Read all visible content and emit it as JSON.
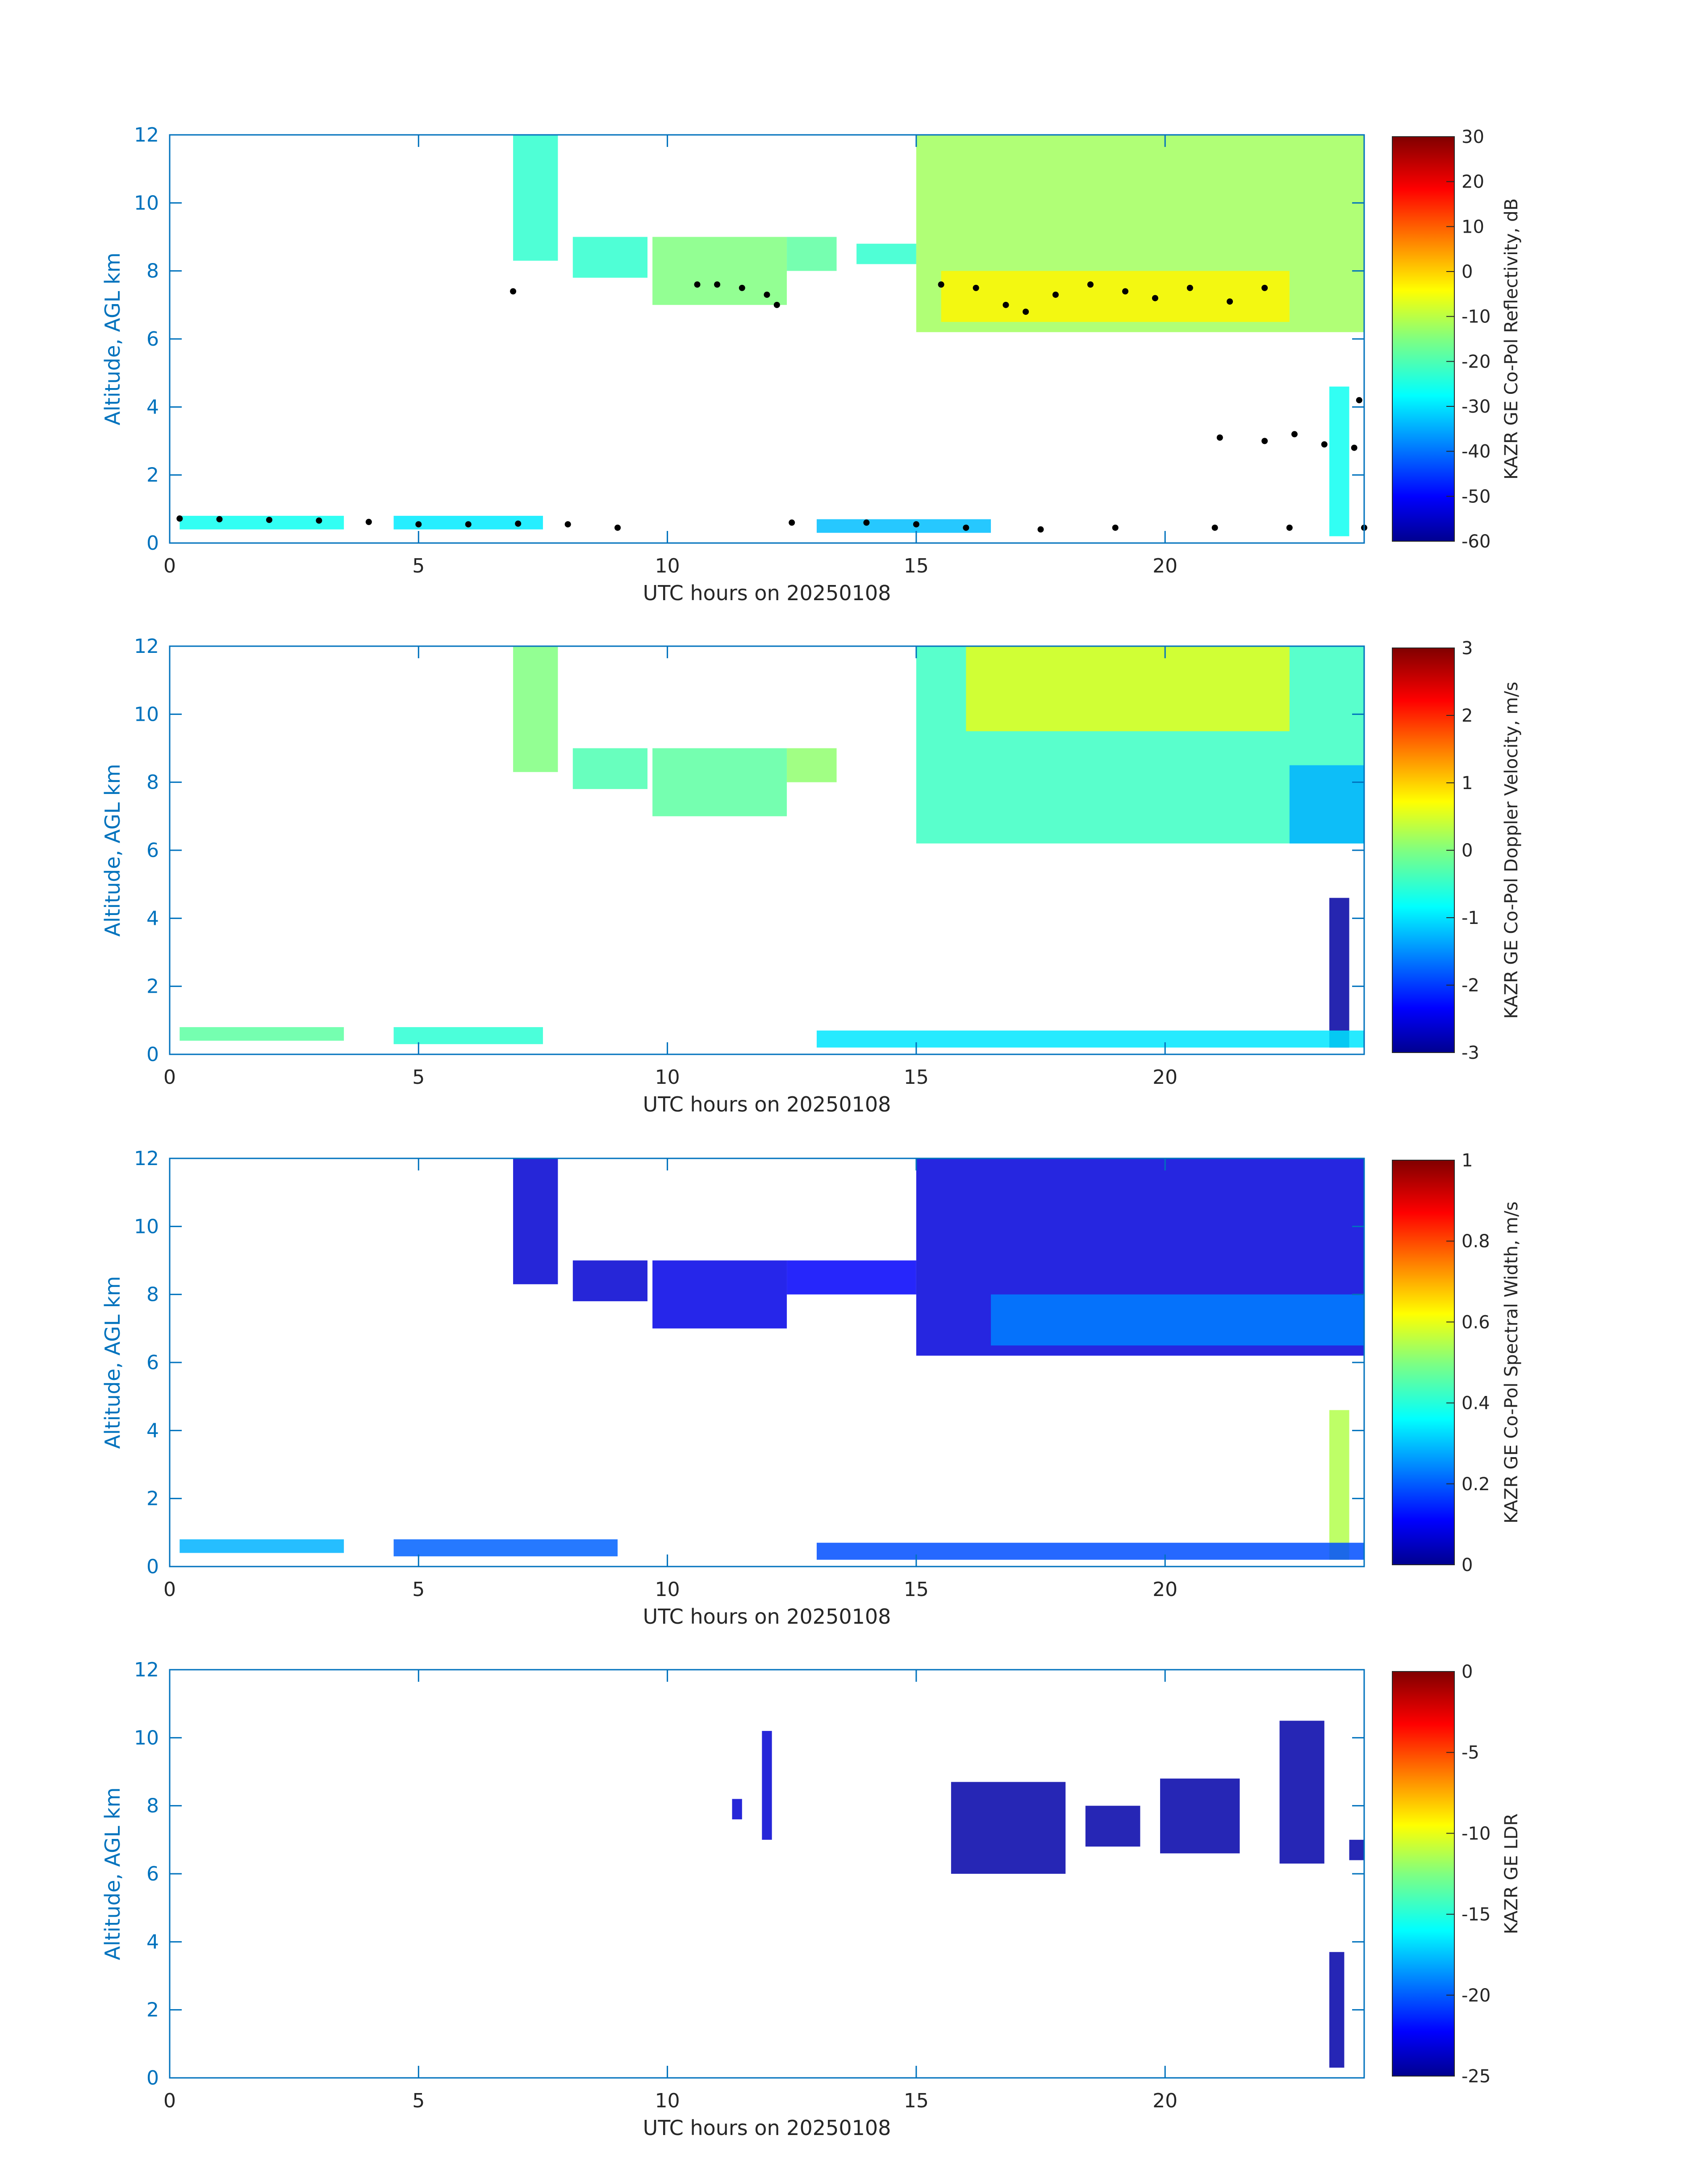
{
  "figure": {
    "xlabel": "UTC hours on 20250108",
    "ylabel": "Altitude, AGL km",
    "axis_color": "#0072bd",
    "text_color": "#262626"
  },
  "chart_data": [
    {
      "type": "heatmap",
      "colorbar_label": "KAZR GE Co-Pol Reflectivity, dB",
      "xlabel": "UTC hours on 20250108",
      "ylabel": "Altitude, AGL km",
      "xlim": [
        0,
        24
      ],
      "ylim": [
        0,
        12
      ],
      "xticks": [
        0,
        5,
        10,
        15,
        20
      ],
      "yticks": [
        0,
        2,
        4,
        6,
        8,
        10,
        12
      ],
      "clim": [
        -60,
        30
      ],
      "cticks": [
        -60,
        -50,
        -40,
        -30,
        -20,
        -10,
        0,
        10,
        20,
        30
      ],
      "colormap": "jet",
      "overlay_markers": "black dots (cloud base / top points)",
      "features": [
        {
          "x0": 6.9,
          "x1": 7.8,
          "y0": 8.3,
          "y1": 12.0,
          "value": -22
        },
        {
          "x0": 8.1,
          "x1": 9.6,
          "y0": 7.8,
          "y1": 9.0,
          "value": -22
        },
        {
          "x0": 9.7,
          "x1": 12.4,
          "y0": 7.0,
          "y1": 9.0,
          "value": -15
        },
        {
          "x0": 12.4,
          "x1": 13.4,
          "y0": 8.0,
          "y1": 9.0,
          "value": -18
        },
        {
          "x0": 13.8,
          "x1": 15.0,
          "y0": 8.2,
          "y1": 8.8,
          "value": -22
        },
        {
          "x0": 15.0,
          "x1": 24.0,
          "y0": 6.2,
          "y1": 12.0,
          "value": -12
        },
        {
          "x0": 15.5,
          "x1": 22.5,
          "y0": 6.5,
          "y1": 8.0,
          "value": -3
        },
        {
          "x0": 23.3,
          "x1": 23.7,
          "y0": 0.2,
          "y1": 4.6,
          "value": -25
        },
        {
          "x0": 0.2,
          "x1": 3.5,
          "y0": 0.4,
          "y1": 0.8,
          "value": -25
        },
        {
          "x0": 4.5,
          "x1": 7.5,
          "y0": 0.4,
          "y1": 0.8,
          "value": -28
        },
        {
          "x0": 13.0,
          "x1": 16.5,
          "y0": 0.3,
          "y1": 0.7,
          "value": -32
        }
      ],
      "markers": [
        {
          "x": 0.2,
          "y": 0.72
        },
        {
          "x": 1.0,
          "y": 0.7
        },
        {
          "x": 2.0,
          "y": 0.68
        },
        {
          "x": 3.0,
          "y": 0.66
        },
        {
          "x": 4.0,
          "y": 0.62
        },
        {
          "x": 5.0,
          "y": 0.55
        },
        {
          "x": 6.0,
          "y": 0.55
        },
        {
          "x": 7.0,
          "y": 0.57
        },
        {
          "x": 8.0,
          "y": 0.55
        },
        {
          "x": 9.0,
          "y": 0.45
        },
        {
          "x": 12.5,
          "y": 0.6
        },
        {
          "x": 14.0,
          "y": 0.6
        },
        {
          "x": 15.0,
          "y": 0.55
        },
        {
          "x": 16.0,
          "y": 0.45
        },
        {
          "x": 17.5,
          "y": 0.4
        },
        {
          "x": 19.0,
          "y": 0.45
        },
        {
          "x": 21.0,
          "y": 0.45
        },
        {
          "x": 22.5,
          "y": 0.45
        },
        {
          "x": 24.0,
          "y": 0.45
        },
        {
          "x": 6.9,
          "y": 7.4
        },
        {
          "x": 10.6,
          "y": 7.6
        },
        {
          "x": 11.0,
          "y": 7.6
        },
        {
          "x": 11.5,
          "y": 7.5
        },
        {
          "x": 12.0,
          "y": 7.3
        },
        {
          "x": 12.2,
          "y": 7.0
        },
        {
          "x": 15.5,
          "y": 7.6
        },
        {
          "x": 16.2,
          "y": 7.5
        },
        {
          "x": 16.8,
          "y": 7.0
        },
        {
          "x": 17.2,
          "y": 6.8
        },
        {
          "x": 17.8,
          "y": 7.3
        },
        {
          "x": 18.5,
          "y": 7.6
        },
        {
          "x": 19.2,
          "y": 7.4
        },
        {
          "x": 19.8,
          "y": 7.2
        },
        {
          "x": 20.5,
          "y": 7.5
        },
        {
          "x": 21.3,
          "y": 7.1
        },
        {
          "x": 22.0,
          "y": 7.5
        },
        {
          "x": 21.1,
          "y": 3.1
        },
        {
          "x": 22.0,
          "y": 3.0
        },
        {
          "x": 22.6,
          "y": 3.2
        },
        {
          "x": 23.2,
          "y": 2.9
        },
        {
          "x": 23.8,
          "y": 2.8
        },
        {
          "x": 23.9,
          "y": 4.2
        }
      ]
    },
    {
      "type": "heatmap",
      "colorbar_label": "KAZR GE Co-Pol Doppler Velocity, m/s",
      "xlabel": "UTC hours on 20250108",
      "ylabel": "Altitude, AGL km",
      "xlim": [
        0,
        24
      ],
      "ylim": [
        0,
        12
      ],
      "xticks": [
        0,
        5,
        10,
        15,
        20
      ],
      "yticks": [
        0,
        2,
        4,
        6,
        8,
        10,
        12
      ],
      "clim": [
        -3,
        3
      ],
      "cticks": [
        -3,
        -2,
        -1,
        0,
        1,
        2,
        3
      ],
      "colormap": "jet",
      "features": [
        {
          "x0": 6.9,
          "x1": 7.8,
          "y0": 8.3,
          "y1": 12.0,
          "value": 0.0
        },
        {
          "x0": 8.1,
          "x1": 9.6,
          "y0": 7.8,
          "y1": 9.0,
          "value": -0.3
        },
        {
          "x0": 9.7,
          "x1": 12.4,
          "y0": 7.0,
          "y1": 9.0,
          "value": -0.2
        },
        {
          "x0": 12.4,
          "x1": 13.4,
          "y0": 8.0,
          "y1": 9.0,
          "value": 0.1
        },
        {
          "x0": 15.0,
          "x1": 24.0,
          "y0": 6.2,
          "y1": 12.0,
          "value": -0.4
        },
        {
          "x0": 16.0,
          "x1": 22.5,
          "y0": 9.5,
          "y1": 12.0,
          "value": 0.6
        },
        {
          "x0": 22.5,
          "x1": 24.0,
          "y0": 6.2,
          "y1": 8.5,
          "value": -1.2
        },
        {
          "x0": 23.3,
          "x1": 23.7,
          "y0": 0.2,
          "y1": 4.6,
          "value": -2.8
        },
        {
          "x0": 0.2,
          "x1": 3.5,
          "y0": 0.4,
          "y1": 0.8,
          "value": -0.2
        },
        {
          "x0": 4.5,
          "x1": 7.5,
          "y0": 0.3,
          "y1": 0.8,
          "value": -0.5
        },
        {
          "x0": 13.0,
          "x1": 24.0,
          "y0": 0.2,
          "y1": 0.7,
          "value": -0.9
        }
      ]
    },
    {
      "type": "heatmap",
      "colorbar_label": "KAZR GE Co-Pol Spectral Width, m/s",
      "xlabel": "UTC hours on 20250108",
      "ylabel": "Altitude, AGL km",
      "xlim": [
        0,
        24
      ],
      "ylim": [
        0,
        12
      ],
      "xticks": [
        0,
        5,
        10,
        15,
        20
      ],
      "yticks": [
        0,
        2,
        4,
        6,
        8,
        10,
        12
      ],
      "clim": [
        0,
        1
      ],
      "cticks": [
        0,
        0.2,
        0.4,
        0.6,
        0.8,
        1
      ],
      "colormap": "jet",
      "features": [
        {
          "x0": 6.9,
          "x1": 7.8,
          "y0": 8.3,
          "y1": 12.0,
          "value": 0.08
        },
        {
          "x0": 8.1,
          "x1": 9.6,
          "y0": 7.8,
          "y1": 9.0,
          "value": 0.08
        },
        {
          "x0": 9.7,
          "x1": 12.4,
          "y0": 7.0,
          "y1": 9.0,
          "value": 0.1
        },
        {
          "x0": 12.4,
          "x1": 15.0,
          "y0": 8.0,
          "y1": 9.0,
          "value": 0.12
        },
        {
          "x0": 15.0,
          "x1": 24.0,
          "y0": 6.2,
          "y1": 12.0,
          "value": 0.09
        },
        {
          "x0": 16.5,
          "x1": 24.0,
          "y0": 6.5,
          "y1": 8.0,
          "value": 0.25
        },
        {
          "x0": 23.3,
          "x1": 23.7,
          "y0": 0.2,
          "y1": 4.6,
          "value": 0.55
        },
        {
          "x0": 0.2,
          "x1": 3.5,
          "y0": 0.4,
          "y1": 0.8,
          "value": 0.3
        },
        {
          "x0": 4.5,
          "x1": 9.0,
          "y0": 0.3,
          "y1": 0.8,
          "value": 0.22
        },
        {
          "x0": 13.0,
          "x1": 24.0,
          "y0": 0.2,
          "y1": 0.7,
          "value": 0.2
        }
      ]
    },
    {
      "type": "heatmap",
      "colorbar_label": "KAZR GE LDR",
      "xlabel": "UTC hours on 20250108",
      "ylabel": "Altitude, AGL km",
      "xlim": [
        0,
        24
      ],
      "ylim": [
        0,
        12
      ],
      "xticks": [
        0,
        5,
        10,
        15,
        20
      ],
      "yticks": [
        0,
        2,
        4,
        6,
        8,
        10,
        12
      ],
      "clim": [
        -25,
        0
      ],
      "cticks": [
        -25,
        -20,
        -15,
        -10,
        -5,
        0
      ],
      "colormap": "jet",
      "features": [
        {
          "x0": 11.3,
          "x1": 11.5,
          "y0": 7.6,
          "y1": 8.2,
          "value": -23
        },
        {
          "x0": 11.9,
          "x1": 12.1,
          "y0": 7.0,
          "y1": 10.2,
          "value": -23
        },
        {
          "x0": 15.7,
          "x1": 18.0,
          "y0": 6.0,
          "y1": 8.7,
          "value": -24
        },
        {
          "x0": 18.4,
          "x1": 19.5,
          "y0": 6.8,
          "y1": 8.0,
          "value": -24
        },
        {
          "x0": 19.9,
          "x1": 21.5,
          "y0": 6.6,
          "y1": 8.8,
          "value": -24
        },
        {
          "x0": 22.3,
          "x1": 23.2,
          "y0": 6.3,
          "y1": 10.5,
          "value": -24
        },
        {
          "x0": 23.7,
          "x1": 24.0,
          "y0": 6.4,
          "y1": 7.0,
          "value": -24
        },
        {
          "x0": 23.3,
          "x1": 23.6,
          "y0": 0.3,
          "y1": 3.7,
          "value": -24
        }
      ]
    }
  ]
}
